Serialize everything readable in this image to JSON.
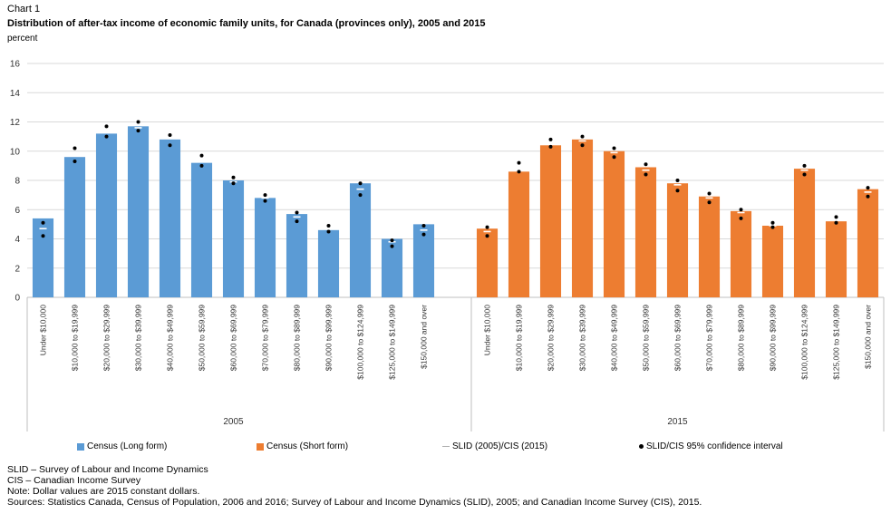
{
  "header": {
    "chart_number": "Chart 1",
    "title": "Distribution of after-tax income of economic family units, for Canada (provinces only), 2005 and 2015",
    "unit": "percent"
  },
  "chart_data": {
    "type": "bar",
    "ylim": [
      0,
      16
    ],
    "yticks": [
      "0",
      "2",
      "4",
      "6",
      "8",
      "10",
      "12",
      "14",
      "16"
    ],
    "categories": [
      "Under $10,000",
      "$10,000 to $19,999",
      "$20,000 to $29,999",
      "$30,000 to $39,999",
      "$40,000 to $49,999",
      "$50,000 to $59,999",
      "$60,000 to $69,999",
      "$70,000 to $79,999",
      "$80,000 to $89,999",
      "$90,000 to $99,999",
      "$100,000 to $124,999",
      "$125,000 to $149,999",
      "$150,000 and over"
    ],
    "groups": [
      {
        "label": "2005",
        "series": "Census (Long form)",
        "color": "#5b9bd5",
        "values": [
          5.4,
          9.6,
          11.2,
          11.7,
          10.8,
          9.2,
          8.0,
          6.8,
          5.7,
          4.6,
          7.8,
          4.0,
          5.0
        ],
        "reference": [
          4.7,
          9.7,
          11.3,
          11.6,
          10.9,
          9.3,
          7.9,
          6.8,
          5.5,
          4.7,
          7.4,
          3.8,
          4.6
        ],
        "ci_low": [
          4.2,
          9.3,
          11.0,
          11.4,
          10.4,
          9.0,
          7.8,
          6.6,
          5.2,
          4.5,
          7.0,
          3.5,
          4.3
        ],
        "ci_high": [
          5.1,
          10.2,
          11.7,
          12.0,
          11.1,
          9.7,
          8.2,
          7.0,
          5.8,
          4.9,
          7.8,
          3.9,
          4.9
        ]
      },
      {
        "label": "2015",
        "series": "Census (Short form)",
        "color": "#ed7d31",
        "values": [
          4.7,
          8.6,
          10.4,
          10.8,
          10.0,
          8.9,
          7.8,
          6.9,
          5.9,
          4.9,
          8.8,
          5.2,
          7.4
        ],
        "reference": [
          4.5,
          8.9,
          10.5,
          10.7,
          9.9,
          8.7,
          7.7,
          6.8,
          5.8,
          4.9,
          8.7,
          5.3,
          7.2
        ],
        "ci_low": [
          4.2,
          8.6,
          10.3,
          10.4,
          9.6,
          8.4,
          7.3,
          6.5,
          5.4,
          4.8,
          8.4,
          5.1,
          6.9
        ],
        "ci_high": [
          4.8,
          9.2,
          10.8,
          11.0,
          10.2,
          9.1,
          8.0,
          7.1,
          6.0,
          5.1,
          9.0,
          5.5,
          7.5
        ]
      }
    ]
  },
  "legend": {
    "items": [
      {
        "label": "Census (Long form)",
        "kind": "swatch",
        "color": "#5b9bd5"
      },
      {
        "label": "Census (Short form)",
        "kind": "swatch",
        "color": "#ed7d31"
      },
      {
        "label": "SLID (2005)/CIS (2015)",
        "kind": "dash",
        "color": "#b0b0b0"
      },
      {
        "label": "SLID/CIS 95% confidence interval",
        "kind": "dot",
        "color": "#000000"
      }
    ]
  },
  "notes": [
    "SLID – Survey of Labour and Income Dynamics",
    "CIS – Canadian Income Survey",
    "Note: Dollar values are 2015 constant dollars.",
    "Sources: Statistics Canada, Census of Population, 2006 and 2016; Survey of Labour and Income Dynamics (SLID), 2005; and Canadian Income Survey (CIS), 2015."
  ]
}
